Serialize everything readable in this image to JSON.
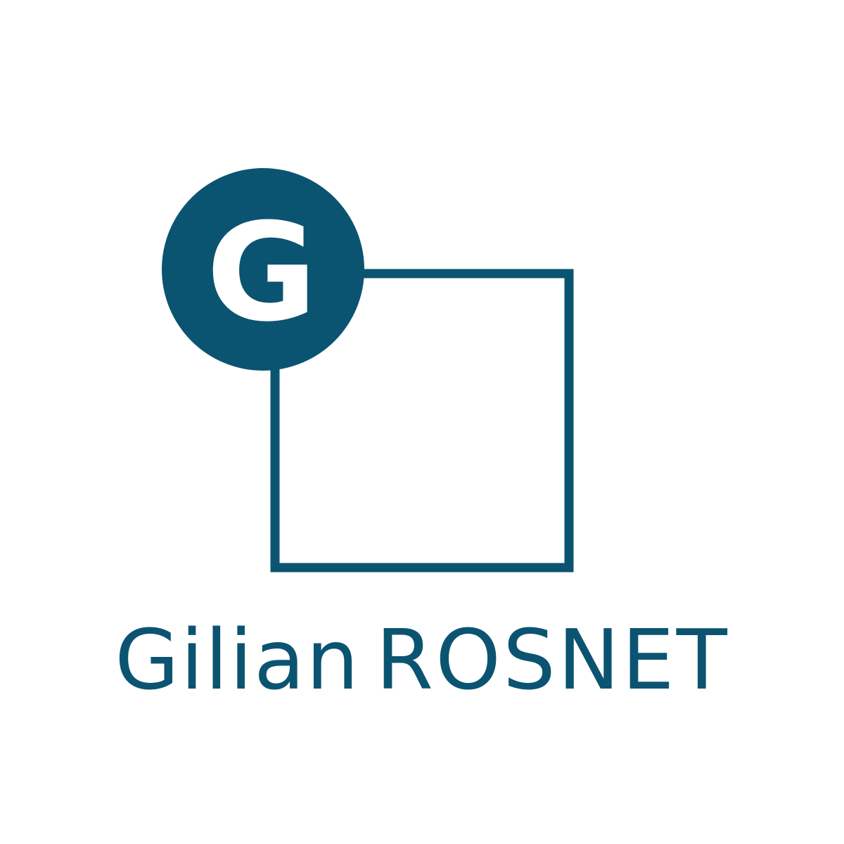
{
  "brand": {
    "monogram": "G",
    "first_name": "Gilian",
    "last_name": "ROSNET"
  },
  "colors": {
    "brand": "#0b5471",
    "background": "#ffffff",
    "monogram_text": "#ffffff"
  }
}
